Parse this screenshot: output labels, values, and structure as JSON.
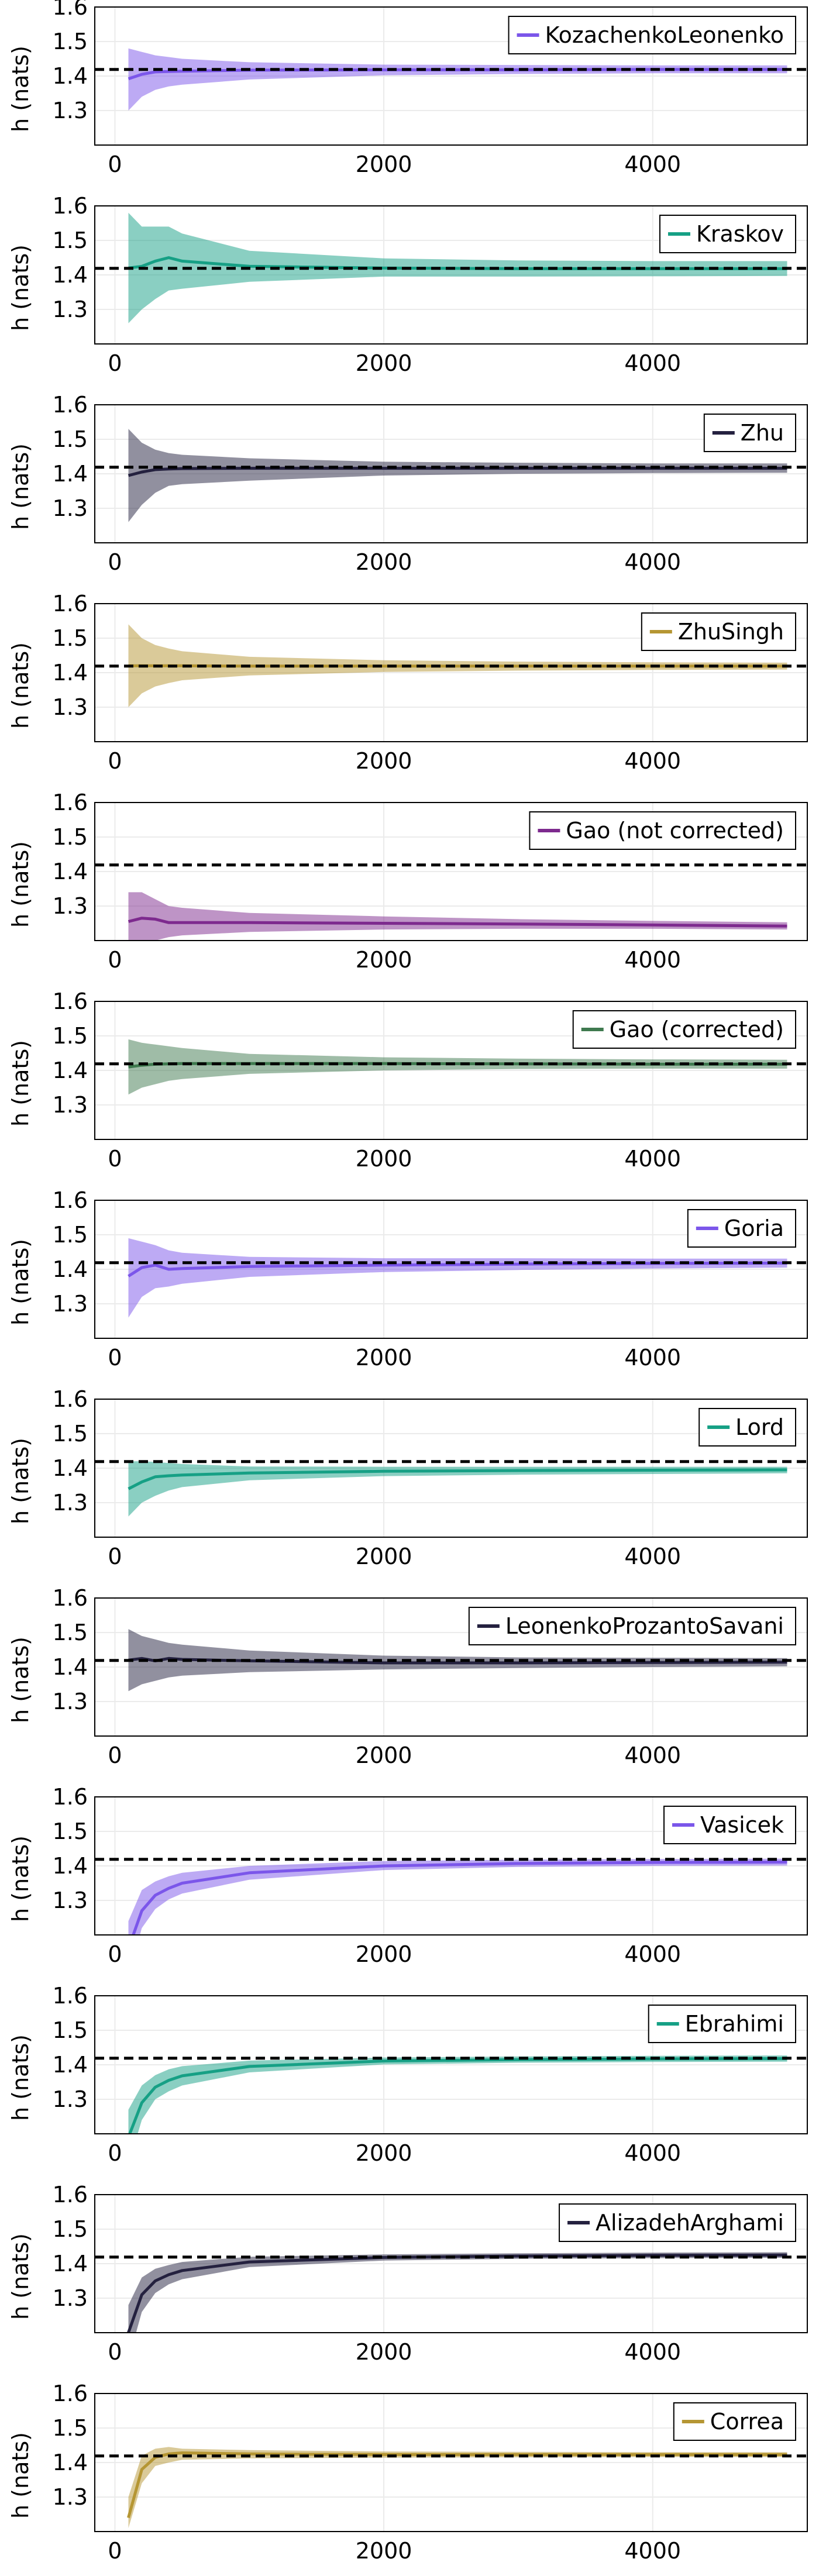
{
  "colors": {
    "true_line": "#000000",
    "grid": "#ebebeb",
    "axis": "#000000"
  },
  "chart_data": [
    {
      "type": "line",
      "ylabel": "h (nats)",
      "xlim": [
        -150,
        5150
      ],
      "ylim": [
        1.2,
        1.6
      ],
      "xticks": [
        0,
        2000,
        4000
      ],
      "yticks": [
        1.3,
        1.4,
        1.5,
        1.6
      ],
      "true_value": 1.419,
      "legend_position": "top-right",
      "series": [
        {
          "name": "KozachenkoLeonenko",
          "color": "#7b56ea",
          "x": [
            100,
            200,
            300,
            400,
            500,
            1000,
            2000,
            3000,
            4000,
            5000
          ],
          "y": [
            1.392,
            1.405,
            1.412,
            1.413,
            1.414,
            1.417,
            1.418,
            1.418,
            1.419,
            1.419
          ],
          "lower": [
            1.3,
            1.34,
            1.36,
            1.37,
            1.375,
            1.39,
            1.402,
            1.406,
            1.408,
            1.408
          ],
          "upper": [
            1.48,
            1.47,
            1.46,
            1.455,
            1.45,
            1.44,
            1.433,
            1.432,
            1.431,
            1.431
          ]
        }
      ]
    },
    {
      "type": "line",
      "ylabel": "h (nats)",
      "xlim": [
        -150,
        5150
      ],
      "ylim": [
        1.2,
        1.6
      ],
      "xticks": [
        0,
        2000,
        4000
      ],
      "yticks": [
        1.3,
        1.4,
        1.5,
        1.6
      ],
      "true_value": 1.419,
      "legend_position": "top-right",
      "series": [
        {
          "name": "Kraskov",
          "color": "#16a085",
          "x": [
            100,
            200,
            300,
            400,
            500,
            1000,
            2000,
            3000,
            4000,
            5000
          ],
          "y": [
            1.42,
            1.425,
            1.44,
            1.45,
            1.44,
            1.425,
            1.42,
            1.418,
            1.418,
            1.418
          ],
          "lower": [
            1.26,
            1.3,
            1.33,
            1.355,
            1.36,
            1.38,
            1.395,
            1.395,
            1.396,
            1.397
          ],
          "upper": [
            1.58,
            1.54,
            1.54,
            1.54,
            1.52,
            1.47,
            1.448,
            1.442,
            1.44,
            1.44
          ]
        }
      ]
    },
    {
      "type": "line",
      "ylabel": "h (nats)",
      "xlim": [
        -150,
        5150
      ],
      "ylim": [
        1.2,
        1.6
      ],
      "xticks": [
        0,
        2000,
        4000
      ],
      "yticks": [
        1.3,
        1.4,
        1.5,
        1.6
      ],
      "true_value": 1.419,
      "legend_position": "top-right",
      "series": [
        {
          "name": "Zhu",
          "color": "#24213f",
          "x": [
            100,
            200,
            300,
            400,
            500,
            1000,
            2000,
            3000,
            4000,
            5000
          ],
          "y": [
            1.395,
            1.405,
            1.412,
            1.414,
            1.415,
            1.416,
            1.416,
            1.416,
            1.416,
            1.416
          ],
          "lower": [
            1.26,
            1.31,
            1.345,
            1.365,
            1.37,
            1.38,
            1.395,
            1.4,
            1.402,
            1.403
          ],
          "upper": [
            1.53,
            1.49,
            1.47,
            1.46,
            1.455,
            1.445,
            1.435,
            1.432,
            1.43,
            1.43
          ]
        }
      ]
    },
    {
      "type": "line",
      "ylabel": "h (nats)",
      "xlim": [
        -150,
        5150
      ],
      "ylim": [
        1.2,
        1.6
      ],
      "xticks": [
        0,
        2000,
        4000
      ],
      "yticks": [
        1.3,
        1.4,
        1.5,
        1.6
      ],
      "true_value": 1.419,
      "legend_position": "top-right",
      "series": [
        {
          "name": "ZhuSingh",
          "color": "#b59633",
          "x": [
            100,
            200,
            300,
            400,
            500,
            1000,
            2000,
            3000,
            4000,
            5000
          ],
          "y": [
            1.42,
            1.42,
            1.42,
            1.42,
            1.42,
            1.419,
            1.419,
            1.419,
            1.419,
            1.419
          ],
          "lower": [
            1.3,
            1.34,
            1.36,
            1.37,
            1.378,
            1.392,
            1.402,
            1.406,
            1.408,
            1.409
          ],
          "upper": [
            1.54,
            1.5,
            1.48,
            1.47,
            1.462,
            1.446,
            1.436,
            1.432,
            1.43,
            1.429
          ]
        }
      ]
    },
    {
      "type": "line",
      "ylabel": "h (nats)",
      "xlim": [
        -150,
        5150
      ],
      "ylim": [
        1.2,
        1.6
      ],
      "xticks": [
        0,
        2000,
        4000
      ],
      "yticks": [
        1.3,
        1.4,
        1.5,
        1.6
      ],
      "true_value": 1.419,
      "legend_position": "top-right",
      "series": [
        {
          "name": "Gao (not corrected)",
          "color": "#7d2a8e",
          "x": [
            100,
            200,
            300,
            400,
            500,
            1000,
            2000,
            3000,
            4000,
            5000
          ],
          "y": [
            1.255,
            1.265,
            1.262,
            1.252,
            1.252,
            1.252,
            1.25,
            1.248,
            1.245,
            1.242
          ],
          "lower": [
            1.2,
            1.2,
            1.2,
            1.21,
            1.215,
            1.225,
            1.232,
            1.234,
            1.234,
            1.232
          ],
          "upper": [
            1.34,
            1.34,
            1.32,
            1.3,
            1.295,
            1.28,
            1.27,
            1.262,
            1.257,
            1.253
          ]
        }
      ]
    },
    {
      "type": "line",
      "ylabel": "h (nats)",
      "xlim": [
        -150,
        5150
      ],
      "ylim": [
        1.2,
        1.6
      ],
      "xticks": [
        0,
        2000,
        4000
      ],
      "yticks": [
        1.3,
        1.4,
        1.5,
        1.6
      ],
      "true_value": 1.419,
      "legend_position": "top-right",
      "series": [
        {
          "name": "Gao (corrected)",
          "color": "#3f7a4f",
          "x": [
            100,
            200,
            300,
            400,
            500,
            1000,
            2000,
            3000,
            4000,
            5000
          ],
          "y": [
            1.41,
            1.415,
            1.418,
            1.419,
            1.42,
            1.42,
            1.42,
            1.419,
            1.418,
            1.418
          ],
          "lower": [
            1.33,
            1.35,
            1.36,
            1.37,
            1.375,
            1.39,
            1.4,
            1.404,
            1.405,
            1.405
          ],
          "upper": [
            1.49,
            1.48,
            1.475,
            1.47,
            1.465,
            1.448,
            1.438,
            1.434,
            1.432,
            1.431
          ]
        }
      ]
    },
    {
      "type": "line",
      "ylabel": "h (nats)",
      "xlim": [
        -150,
        5150
      ],
      "ylim": [
        1.2,
        1.6
      ],
      "xticks": [
        0,
        2000,
        4000
      ],
      "yticks": [
        1.3,
        1.4,
        1.5,
        1.6
      ],
      "true_value": 1.419,
      "legend_position": "top-right",
      "series": [
        {
          "name": "Goria",
          "color": "#7b56ea",
          "x": [
            100,
            200,
            300,
            400,
            500,
            1000,
            2000,
            3000,
            4000,
            5000
          ],
          "y": [
            1.38,
            1.405,
            1.412,
            1.4,
            1.402,
            1.408,
            1.412,
            1.415,
            1.417,
            1.418
          ],
          "lower": [
            1.26,
            1.32,
            1.345,
            1.35,
            1.358,
            1.378,
            1.392,
            1.398,
            1.402,
            1.405
          ],
          "upper": [
            1.49,
            1.48,
            1.47,
            1.455,
            1.448,
            1.436,
            1.432,
            1.432,
            1.431,
            1.431
          ]
        }
      ]
    },
    {
      "type": "line",
      "ylabel": "h (nats)",
      "xlim": [
        -150,
        5150
      ],
      "ylim": [
        1.2,
        1.6
      ],
      "xticks": [
        0,
        2000,
        4000
      ],
      "yticks": [
        1.3,
        1.4,
        1.5,
        1.6
      ],
      "true_value": 1.419,
      "legend_position": "top-right",
      "series": [
        {
          "name": "Lord",
          "color": "#16a085",
          "x": [
            100,
            200,
            300,
            400,
            500,
            1000,
            2000,
            3000,
            4000,
            5000
          ],
          "y": [
            1.34,
            1.36,
            1.375,
            1.378,
            1.38,
            1.386,
            1.391,
            1.393,
            1.394,
            1.395
          ],
          "lower": [
            1.26,
            1.3,
            1.32,
            1.335,
            1.345,
            1.365,
            1.377,
            1.381,
            1.383,
            1.385
          ],
          "upper": [
            1.42,
            1.42,
            1.418,
            1.415,
            1.412,
            1.405,
            1.404,
            1.404,
            1.404,
            1.404
          ]
        }
      ]
    },
    {
      "type": "line",
      "ylabel": "h (nats)",
      "xlim": [
        -150,
        5150
      ],
      "ylim": [
        1.2,
        1.6
      ],
      "xticks": [
        0,
        2000,
        4000
      ],
      "yticks": [
        1.3,
        1.4,
        1.5,
        1.6
      ],
      "true_value": 1.419,
      "legend_position": "top-right",
      "series": [
        {
          "name": "LeonenkoProzantoSavani",
          "color": "#24213f",
          "x": [
            100,
            200,
            300,
            400,
            500,
            1000,
            2000,
            3000,
            4000,
            5000
          ],
          "y": [
            1.42,
            1.425,
            1.418,
            1.425,
            1.422,
            1.418,
            1.412,
            1.412,
            1.413,
            1.414
          ],
          "lower": [
            1.33,
            1.35,
            1.36,
            1.37,
            1.375,
            1.385,
            1.393,
            1.397,
            1.4,
            1.402
          ],
          "upper": [
            1.51,
            1.49,
            1.48,
            1.47,
            1.465,
            1.448,
            1.433,
            1.428,
            1.427,
            1.426
          ]
        }
      ]
    },
    {
      "type": "line",
      "ylabel": "h (nats)",
      "xlim": [
        -150,
        5150
      ],
      "ylim": [
        1.2,
        1.6
      ],
      "xticks": [
        0,
        2000,
        4000
      ],
      "yticks": [
        1.3,
        1.4,
        1.5,
        1.6
      ],
      "true_value": 1.419,
      "legend_position": "top-right",
      "series": [
        {
          "name": "Vasicek",
          "color": "#7b56ea",
          "x": [
            100,
            200,
            300,
            400,
            500,
            1000,
            2000,
            3000,
            4000,
            5000
          ],
          "y": [
            1.16,
            1.27,
            1.315,
            1.335,
            1.35,
            1.38,
            1.4,
            1.407,
            1.41,
            1.411
          ],
          "lower": [
            1.08,
            1.22,
            1.275,
            1.303,
            1.32,
            1.36,
            1.388,
            1.397,
            1.4,
            1.401
          ],
          "upper": [
            1.24,
            1.33,
            1.355,
            1.37,
            1.38,
            1.4,
            1.414,
            1.418,
            1.42,
            1.421
          ]
        }
      ]
    },
    {
      "type": "line",
      "ylabel": "h (nats)",
      "xlim": [
        -150,
        5150
      ],
      "ylim": [
        1.2,
        1.6
      ],
      "xticks": [
        0,
        2000,
        4000
      ],
      "yticks": [
        1.3,
        1.4,
        1.5,
        1.6
      ],
      "true_value": 1.419,
      "legend_position": "top-right",
      "series": [
        {
          "name": "Ebrahimi",
          "color": "#16a085",
          "x": [
            100,
            200,
            300,
            400,
            500,
            1000,
            2000,
            3000,
            4000,
            5000
          ],
          "y": [
            1.19,
            1.29,
            1.335,
            1.355,
            1.368,
            1.395,
            1.411,
            1.415,
            1.417,
            1.418
          ],
          "lower": [
            1.11,
            1.24,
            1.3,
            1.323,
            1.34,
            1.378,
            1.401,
            1.406,
            1.408,
            1.409
          ],
          "upper": [
            1.27,
            1.34,
            1.37,
            1.387,
            1.396,
            1.412,
            1.421,
            1.424,
            1.426,
            1.427
          ]
        }
      ]
    },
    {
      "type": "line",
      "ylabel": "h (nats)",
      "xlim": [
        -150,
        5150
      ],
      "ylim": [
        1.2,
        1.6
      ],
      "xticks": [
        0,
        2000,
        4000
      ],
      "yticks": [
        1.3,
        1.4,
        1.5,
        1.6
      ],
      "true_value": 1.419,
      "legend_position": "top-right",
      "series": [
        {
          "name": "AlizadehArghami",
          "color": "#24213f",
          "x": [
            100,
            200,
            300,
            400,
            500,
            1000,
            2000,
            3000,
            4000,
            5000
          ],
          "y": [
            1.2,
            1.31,
            1.35,
            1.368,
            1.38,
            1.405,
            1.418,
            1.422,
            1.424,
            1.425
          ],
          "lower": [
            1.12,
            1.26,
            1.315,
            1.34,
            1.355,
            1.39,
            1.409,
            1.414,
            1.416,
            1.417
          ],
          "upper": [
            1.28,
            1.36,
            1.385,
            1.396,
            1.405,
            1.42,
            1.427,
            1.43,
            1.432,
            1.433
          ]
        }
      ]
    },
    {
      "type": "line",
      "ylabel": "h (nats)",
      "xlim": [
        -150,
        5150
      ],
      "ylim": [
        1.2,
        1.6
      ],
      "xticks": [
        0,
        2000,
        4000
      ],
      "yticks": [
        1.3,
        1.4,
        1.5,
        1.6
      ],
      "true_value": 1.419,
      "legend_position": "top-right",
      "series": [
        {
          "name": "Correa",
          "color": "#b59633",
          "x": [
            100,
            200,
            300,
            400,
            500,
            1000,
            2000,
            3000,
            4000,
            5000
          ],
          "y": [
            1.24,
            1.38,
            1.415,
            1.425,
            1.428,
            1.425,
            1.423,
            1.423,
            1.423,
            1.423
          ],
          "lower": [
            1.21,
            1.34,
            1.39,
            1.4,
            1.408,
            1.412,
            1.414,
            1.415,
            1.416,
            1.416
          ],
          "upper": [
            1.3,
            1.42,
            1.44,
            1.445,
            1.44,
            1.436,
            1.432,
            1.431,
            1.43,
            1.43
          ]
        }
      ]
    }
  ]
}
